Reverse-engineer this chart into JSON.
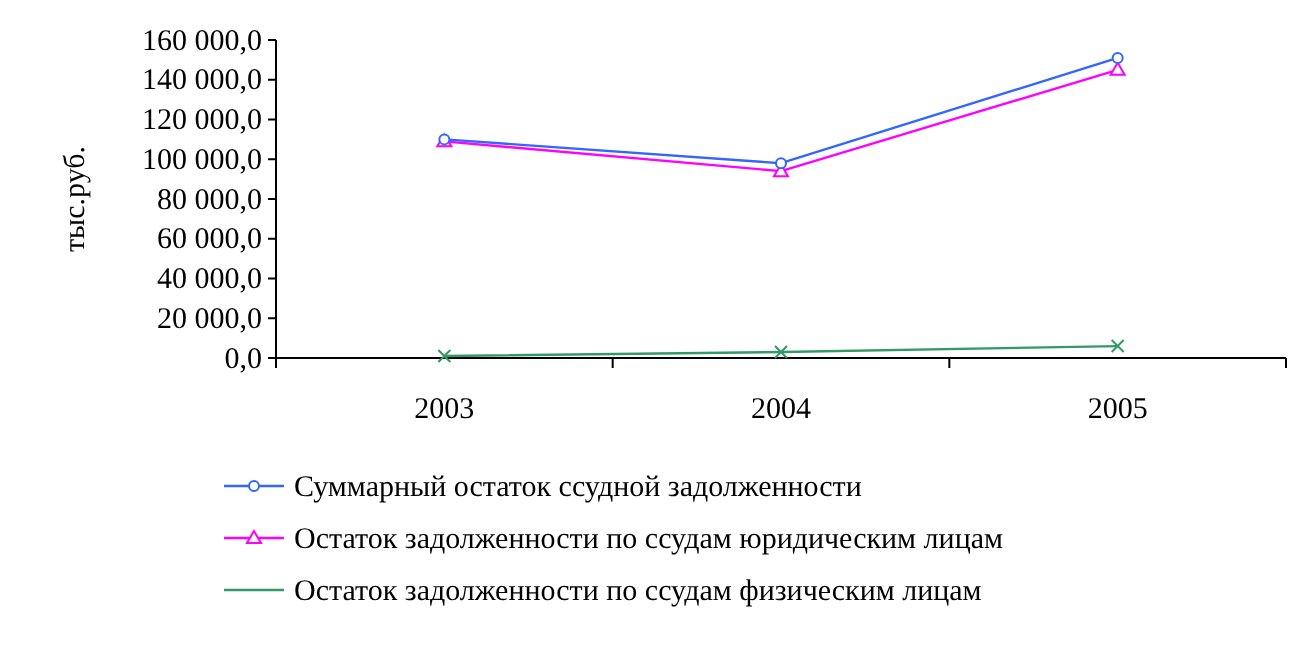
{
  "chart_data": {
    "type": "line",
    "ylabel": "тыс.руб.",
    "categories": [
      "2003",
      "2004",
      "2005"
    ],
    "series": [
      {
        "name": "Суммарный остаток ссудной задолженности",
        "color": "#3366ff",
        "values": [
          110000,
          98000,
          151000
        ],
        "marker": "circle"
      },
      {
        "name": "Остаток задолженности по ссудам юридическим лицам",
        "color": "#ff00ff",
        "values": [
          109000,
          94000,
          145000
        ],
        "marker": "triangle"
      },
      {
        "name": "Остаток задолженности по ссудам физическим лицам",
        "color": "#339966",
        "values": [
          1000,
          3000,
          6000
        ],
        "marker": "cross"
      }
    ],
    "ylim": [
      0,
      160000
    ],
    "yticks": [
      {
        "value": 0,
        "label": "0,0"
      },
      {
        "value": 20000,
        "label": "20 000,0"
      },
      {
        "value": 40000,
        "label": "40 000,0"
      },
      {
        "value": 60000,
        "label": "60 000,0"
      },
      {
        "value": 80000,
        "label": "80 000,0"
      },
      {
        "value": 100000,
        "label": "100 000,0"
      },
      {
        "value": 120000,
        "label": "120 000,0"
      },
      {
        "value": 140000,
        "label": "140 000,0"
      },
      {
        "value": 160000,
        "label": "160 000,0"
      }
    ],
    "grid": false,
    "legend": "bottom",
    "line_style": "solid"
  }
}
